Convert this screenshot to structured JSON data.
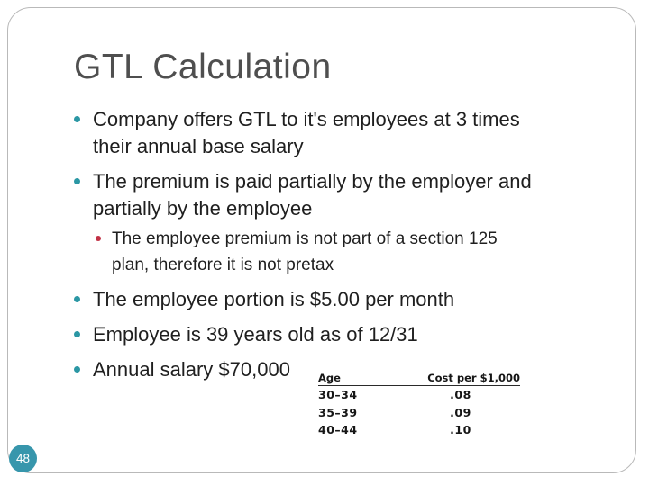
{
  "title": "GTL Calculation",
  "page_number": "48",
  "bullets": [
    {
      "level": 1,
      "text": "Company offers GTL to it's employees at 3 times their annual base salary"
    },
    {
      "level": 1,
      "text": "The premium is paid partially by the employer and partially by the employee"
    },
    {
      "level": 2,
      "text": "The employee premium is not part of a section 125 plan, therefore it is not pretax"
    },
    {
      "level": 1,
      "text": "The employee portion is $5.00 per month"
    },
    {
      "level": 1,
      "text": "Employee is 39 years old as of 12/31"
    },
    {
      "level": 1,
      "text": "Annual salary $70,000"
    }
  ],
  "table": {
    "headers": [
      "Age",
      "Cost per $1,000"
    ],
    "rows": [
      [
        "30–34",
        ".08"
      ],
      [
        "35–39",
        ".09"
      ],
      [
        "40–44",
        ".10"
      ]
    ]
  },
  "colors": {
    "bullet-teal": "#2b97a4",
    "sub-bullet-red": "#c13145",
    "badge-teal": "#3796ac",
    "title-gray": "#4f4f4f",
    "text-dark": "#1f1f1f",
    "frame-border": "#b9b9b9"
  }
}
